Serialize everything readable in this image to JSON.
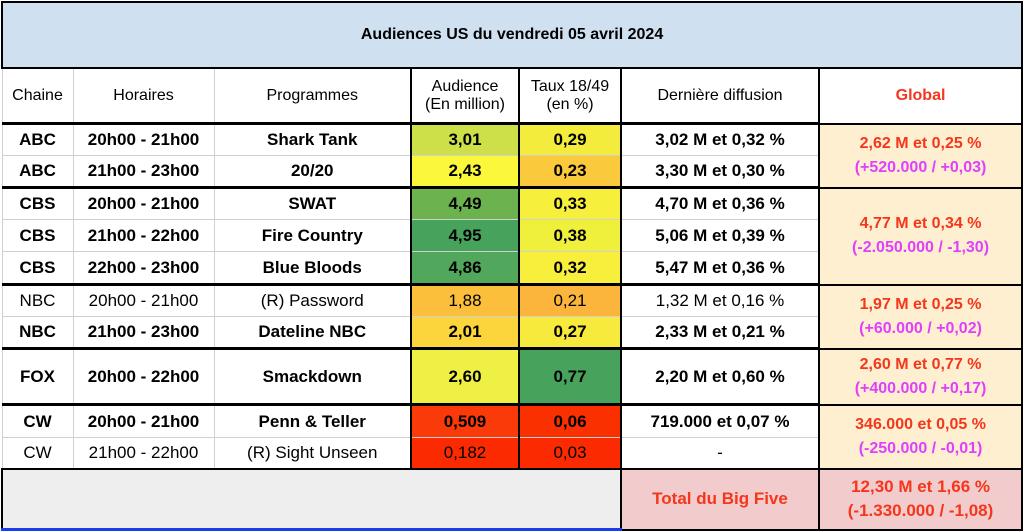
{
  "title": "Audiences US du vendredi 05 avril 2024",
  "headers": {
    "chaine": "Chaine",
    "horaires": "Horaires",
    "programmes": "Programmes",
    "audience1": "Audience",
    "audience2": "(En million)",
    "taux1": "Taux 18/49",
    "taux2": "(en %)",
    "derniere": "Dernière diffusion",
    "global": "Global"
  },
  "rows": [
    {
      "chaine": "ABC",
      "horaires": "20h00 - 21h00",
      "programme": "Shark Tank",
      "audience": "3,01",
      "taux": "0,29",
      "derniere": "3,02 M et 0,32 %",
      "bold": true,
      "aud_color": "#cde049",
      "taux_color": "#f3ec3c"
    },
    {
      "chaine": "ABC",
      "horaires": "21h00 - 23h00",
      "programme": "20/20",
      "audience": "2,43",
      "taux": "0,23",
      "derniere": "3,30 M et 0,30 %",
      "bold": true,
      "aud_color": "#fbf83c",
      "taux_color": "#fbc93c"
    },
    {
      "chaine": "CBS",
      "horaires": "20h00 - 21h00",
      "programme": "SWAT",
      "audience": "4,49",
      "taux": "0,33",
      "derniere": "4,70 M et 0,36 %",
      "bold": true,
      "aud_color": "#6cb24e",
      "taux_color": "#f6f03c"
    },
    {
      "chaine": "CBS",
      "horaires": "21h00 - 22h00",
      "programme": "Fire Country",
      "audience": "4,95",
      "taux": "0,38",
      "derniere": "5,06 M et 0,39 %",
      "bold": true,
      "aud_color": "#47a35c",
      "taux_color": "#eef03c"
    },
    {
      "chaine": "CBS",
      "horaires": "22h00 - 23h00",
      "programme": "Blue Bloods",
      "audience": "4,86",
      "taux": "0,32",
      "derniere": "5,47 M et 0,36 %",
      "bold": true,
      "aud_color": "#51a75b",
      "taux_color": "#f8ee3c"
    },
    {
      "chaine": "NBC",
      "horaires": "20h00 - 21h00",
      "programme": "(R) Password",
      "audience": "1,88",
      "taux": "0,21",
      "derniere": "1,32 M et 0,16 %",
      "bold": false,
      "aud_color": "#fbbf3c",
      "taux_color": "#fbb43c"
    },
    {
      "chaine": "NBC",
      "horaires": "21h00 - 23h00",
      "programme": "Dateline NBC",
      "audience": "2,01",
      "taux": "0,27",
      "derniere": "2,33 M et 0,21 %",
      "bold": true,
      "aud_color": "#fcd53c",
      "taux_color": "#f8ea3c"
    },
    {
      "chaine": "FOX",
      "horaires": "20h00 - 22h00",
      "programme": "Smackdown",
      "audience": "2,60",
      "taux": "0,77",
      "derniere": "2,20 M et 0,60 %",
      "bold": true,
      "aud_color": "#eef043",
      "taux_color": "#47a35c"
    },
    {
      "chaine": "CW",
      "horaires": "20h00 - 21h00",
      "programme": "Penn & Teller",
      "audience": "0,509",
      "taux": "0,06",
      "derniere": "719.000 et 0,07 %",
      "bold": true,
      "aud_color": "#fb3a0a",
      "taux_color": "#fb3000"
    },
    {
      "chaine": "CW",
      "horaires": "21h00 - 22h00",
      "programme": "(R) Sight Unseen",
      "audience": "0,182",
      "taux": "0,03",
      "derniere": "-",
      "bold": false,
      "aud_color": "#fb2a00",
      "taux_color": "#fb2a00"
    }
  ],
  "globals": [
    {
      "main": "2,62 M et 0,25 %",
      "delta": "(+520.000 / +0,03)"
    },
    {
      "main": "4,77 M et 0,34 %",
      "delta": "(-2.050.000 / -1,30)"
    },
    {
      "main": "1,97 M et 0,25 %",
      "delta": "(+60.000 / +0,02)"
    },
    {
      "main": "2,60 M et 0,77 %",
      "delta": "(+400.000 / +0,17)"
    },
    {
      "main": "346.000 et 0,05 %",
      "delta": "(-250.000 / -0,01)"
    }
  ],
  "total": {
    "label": "Total du Big Five",
    "main": "12,30 M et 1,66 %",
    "delta": "(-1.330.000 / -1,08)"
  }
}
